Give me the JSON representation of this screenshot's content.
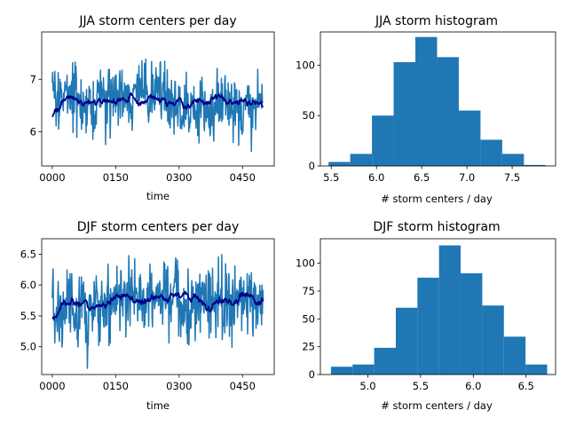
{
  "chart_data": [
    {
      "type": "line",
      "title": "JJA storm centers per day",
      "xlabel": "time",
      "ylabel": "",
      "xlim": [
        -25,
        525
      ],
      "ylim": [
        5.35,
        7.9
      ],
      "xticks": [
        0,
        150,
        300,
        450
      ],
      "xtick_labels": [
        "0000",
        "0150",
        "0300",
        "0450"
      ],
      "yticks": [
        6,
        7
      ],
      "ytick_labels": [
        "6",
        "7"
      ],
      "grid": false,
      "series": [
        {
          "color": "#1f77b4",
          "stats": {
            "n": 500,
            "mean": 6.6,
            "spread": 0.36,
            "min": 5.45,
            "max": 7.85
          }
        },
        {
          "color": "#00008b",
          "stats": {
            "n": 500,
            "mean": 6.6,
            "spread": 0.1,
            "start": 6.3
          }
        }
      ]
    },
    {
      "type": "bar",
      "title": "JJA storm histogram",
      "xlabel": "# storm centers / day",
      "ylabel": "",
      "xlim": [
        5.38,
        7.98
      ],
      "ylim": [
        0,
        133
      ],
      "xticks": [
        5.5,
        6.0,
        6.5,
        7.0,
        7.5
      ],
      "xtick_labels": [
        "5.5",
        "6.0",
        "6.5",
        "7.0",
        "7.5"
      ],
      "yticks": [
        0,
        50,
        100
      ],
      "ytick_labels": [
        "0",
        "50",
        "100"
      ],
      "bin_edges": [
        5.47,
        5.71,
        5.95,
        6.19,
        6.43,
        6.67,
        6.91,
        7.15,
        7.39,
        7.63,
        7.87
      ],
      "values": [
        4,
        12,
        50,
        103,
        128,
        108,
        55,
        26,
        12,
        1
      ],
      "color": "#1f77b4"
    },
    {
      "type": "line",
      "title": "DJF storm centers per day",
      "xlabel": "time",
      "ylabel": "",
      "xlim": [
        -25,
        525
      ],
      "ylim": [
        4.55,
        6.75
      ],
      "xticks": [
        0,
        150,
        300,
        450
      ],
      "xtick_labels": [
        "0000",
        "0150",
        "0300",
        "0450"
      ],
      "yticks": [
        5.0,
        5.5,
        6.0,
        6.5
      ],
      "ytick_labels": [
        "5.0",
        "5.5",
        "6.0",
        "6.5"
      ],
      "grid": false,
      "series": [
        {
          "color": "#1f77b4",
          "stats": {
            "n": 500,
            "mean": 5.75,
            "spread": 0.36,
            "min": 4.65,
            "max": 6.7
          }
        },
        {
          "color": "#00008b",
          "stats": {
            "n": 500,
            "mean": 5.75,
            "spread": 0.1,
            "start": 5.5
          }
        }
      ]
    },
    {
      "type": "bar",
      "title": "DJF storm histogram",
      "xlabel": "# storm centers / day",
      "ylabel": "",
      "xlim": [
        4.55,
        6.78
      ],
      "ylim": [
        0,
        122
      ],
      "xticks": [
        5.0,
        5.5,
        6.0,
        6.5
      ],
      "xtick_labels": [
        "5.0",
        "5.5",
        "6.0",
        "6.5"
      ],
      "yticks": [
        0,
        25,
        50,
        75,
        100
      ],
      "ytick_labels": [
        "0",
        "25",
        "50",
        "75",
        "100"
      ],
      "bin_edges": [
        4.65,
        4.855,
        5.06,
        5.265,
        5.47,
        5.675,
        5.88,
        6.085,
        6.29,
        6.495,
        6.7
      ],
      "values": [
        7,
        9,
        24,
        60,
        87,
        116,
        91,
        62,
        34,
        9
      ],
      "color": "#1f77b4"
    }
  ]
}
